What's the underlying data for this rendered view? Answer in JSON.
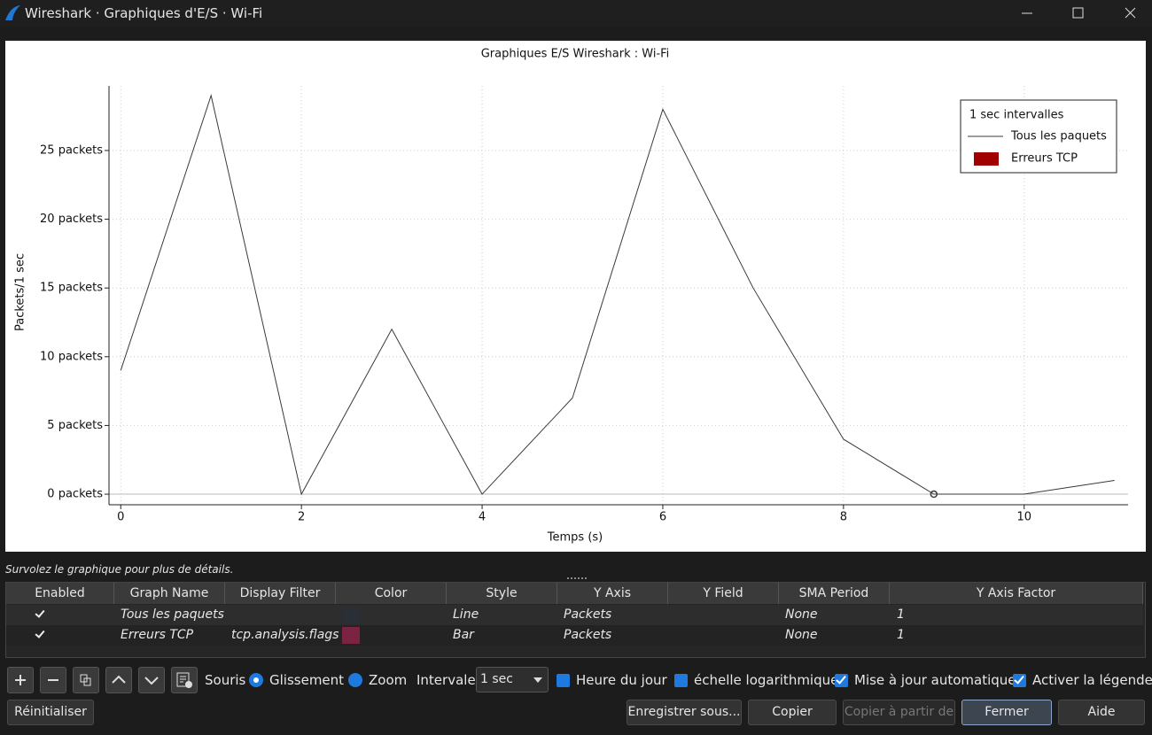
{
  "window": {
    "title": "Wireshark · Graphiques d'E/S · Wi-Fi"
  },
  "chart_data": {
    "type": "line",
    "title": "Graphiques E/S Wireshark : Wi-Fi",
    "x_label": "Temps (s)",
    "y_label": "Packets/1 sec",
    "legend_title": "1 sec intervalles",
    "legend": "top-right",
    "grid": true,
    "x": [
      0,
      1,
      2,
      3,
      4,
      5,
      6,
      7,
      8,
      9,
      10,
      11
    ],
    "series": [
      {
        "name": "Tous les paquets",
        "color": "#3a3a3a",
        "values": [
          9,
          29,
          0,
          12,
          0,
          7,
          28,
          15,
          4,
          0,
          0,
          1
        ]
      },
      {
        "name": "Erreurs TCP",
        "color": "#a00000"
      }
    ],
    "xlim": [
      -0.13,
      11.15
    ],
    "ylim": [
      -0.77,
      29.7
    ],
    "xticks": [
      0,
      2,
      4,
      6,
      8,
      10
    ],
    "yticks": [
      {
        "value": 0,
        "label": "0 packets"
      },
      {
        "value": 5,
        "label": "5 packets"
      },
      {
        "value": 10,
        "label": "10 packets"
      },
      {
        "value": 15,
        "label": "15 packets"
      },
      {
        "value": 20,
        "label": "20 packets"
      },
      {
        "value": 25,
        "label": "25 packets"
      }
    ]
  },
  "hint": "Survolez le graphique pour plus de détails.",
  "table": {
    "headers": [
      "Enabled",
      "Graph Name",
      "Display Filter",
      "Color",
      "Style",
      "Y Axis",
      "Y Field",
      "SMA Period",
      "Y Axis Factor"
    ],
    "rows": [
      {
        "enabled": true,
        "name": "Tous les paquets",
        "color": "#2a2e35",
        "style": "Line",
        "y_axis": "Packets",
        "sma": "None",
        "factor": 1
      },
      {
        "enabled": true,
        "name": "Erreurs TCP",
        "filter": "tcp.analysis.flags",
        "color": "#7a2342",
        "style": "Bar",
        "y_axis": "Packets",
        "sma": "None",
        "factor": 1
      }
    ]
  },
  "controls": {
    "mouse_label": "Souris",
    "radios": [
      {
        "label": "Glissement",
        "selected": true
      },
      {
        "label": "Zoom",
        "selected": false
      }
    ],
    "interval_label": "Intervale",
    "interval": "1 sec",
    "checkboxes": [
      {
        "label": "Heure du jour",
        "checked": false
      },
      {
        "label": "échelle logarithmique",
        "checked": false
      },
      {
        "label": "Mise à jour automatique",
        "checked": true
      },
      {
        "label": "Activer la légende",
        "checked": true
      }
    ]
  },
  "buttons": {
    "reset": "Réinitialiser",
    "save": "Enregistrer sous...",
    "copy": "Copier",
    "copy_from": "Copier à partir de",
    "close": "Fermer",
    "help": "Aide"
  }
}
